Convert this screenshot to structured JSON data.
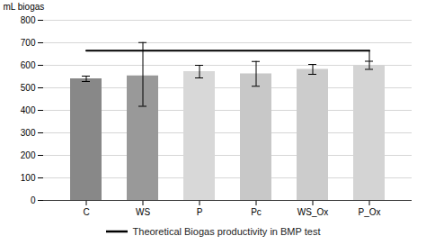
{
  "chart_data": {
    "type": "bar",
    "categories": [
      "C",
      "WS",
      "P",
      "Pc",
      "WS_Ox",
      "P_Ox"
    ],
    "values": [
      540,
      553,
      572,
      562,
      582,
      600
    ],
    "errors_up": [
      12,
      148,
      28,
      55,
      22,
      18
    ],
    "errors_down": [
      12,
      135,
      28,
      55,
      22,
      18
    ],
    "colors": [
      "#888888",
      "#999999",
      "#d8d8d8",
      "#c8c8c8",
      "#cccccc",
      "#d4d4d4"
    ],
    "ylabel": "mL biogas",
    "ylim": [
      0,
      800
    ],
    "yticks": [
      0,
      100,
      200,
      300,
      400,
      500,
      600,
      700,
      800
    ],
    "grid": true,
    "legend": "bottom",
    "reference_line": {
      "y": 665,
      "label": "Theoretical Biogas productivity in BMP test"
    }
  }
}
